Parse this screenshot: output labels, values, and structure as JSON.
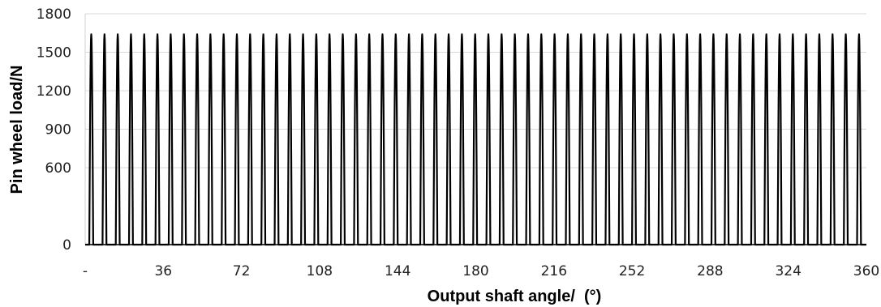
{
  "chart_data": {
    "type": "line",
    "title": "",
    "xlabel": "Output shaft angle/  (°)",
    "ylabel": "Pin wheel load/N",
    "xlim": [
      0,
      360
    ],
    "ylim": [
      0,
      1800
    ],
    "x_ticks": [
      {
        "value": 0,
        "label": "-"
      },
      {
        "value": 36,
        "label": "36"
      },
      {
        "value": 72,
        "label": "72"
      },
      {
        "value": 108,
        "label": "108"
      },
      {
        "value": 144,
        "label": "144"
      },
      {
        "value": 180,
        "label": "180"
      },
      {
        "value": 216,
        "label": "216"
      },
      {
        "value": 252,
        "label": "252"
      },
      {
        "value": 288,
        "label": "288"
      },
      {
        "value": 324,
        "label": "324"
      },
      {
        "value": 360,
        "label": "360"
      }
    ],
    "y_ticks": [
      {
        "value": 0,
        "label": "0"
      },
      {
        "value": 600,
        "label": "600"
      },
      {
        "value": 900,
        "label": "900"
      },
      {
        "value": 1200,
        "label": "1200"
      },
      {
        "value": 1500,
        "label": "1500"
      },
      {
        "value": 1800,
        "label": "1800"
      }
    ],
    "grid": "horizontal",
    "legend": "none",
    "series": [
      {
        "peak_angles": [
          3.6,
          7.2,
          10.8,
          14.4,
          18.0,
          21.6,
          25.2,
          28.8,
          32.4,
          36.0,
          39.6,
          43.2,
          46.8,
          50.4,
          54.0,
          57.6,
          61.2,
          64.8,
          68.4,
          72.0,
          75.6,
          79.2,
          82.8,
          86.4,
          90.0,
          93.6,
          97.2,
          100.8,
          104.4,
          108.0,
          111.6,
          115.2,
          118.8,
          122.4,
          126.0,
          129.6,
          133.2,
          136.8,
          140.4,
          144.0,
          147.6,
          151.2,
          154.8,
          158.4,
          162.0,
          165.6,
          169.2,
          172.8,
          176.4,
          180.0,
          183.6,
          187.2,
          190.8,
          194.4,
          198.0,
          201.6,
          205.2,
          208.8,
          212.4,
          216.0,
          219.6,
          223.2,
          226.8,
          230.4,
          234.0,
          237.6,
          241.2,
          244.8,
          248.4,
          252.0,
          255.6,
          259.2,
          262.8,
          266.4,
          270.0,
          273.6,
          277.2,
          280.8,
          284.4,
          288.0,
          291.6,
          295.2,
          298.8,
          302.4,
          306.0,
          309.6,
          313.2,
          316.8,
          320.4,
          324.0,
          327.6,
          331.2,
          334.8,
          338.4,
          342.0,
          345.6,
          349.2,
          352.8,
          356.4,
          360.0
        ],
        "peak_load": 1640,
        "pulse_halfwidth_deg": 0.9,
        "note_visible_peaks": [
          2.8,
          8.9,
          15.0,
          21.1,
          27.2,
          33.3,
          39.4,
          45.5,
          51.6,
          57.7,
          63.8,
          69.9,
          76.0,
          82.1,
          88.2,
          94.3,
          100.4,
          106.5,
          112.6,
          118.7,
          124.8,
          130.9,
          137.0,
          143.1,
          149.2,
          155.3,
          161.4,
          167.5,
          173.6,
          179.7,
          185.8,
          191.9,
          198.0,
          204.1,
          210.2,
          216.3,
          222.4,
          228.5,
          234.6,
          240.7,
          246.8,
          252.9,
          259.0,
          265.1,
          271.2,
          277.3,
          283.4,
          289.5,
          295.6,
          301.7,
          307.8,
          313.9,
          320.0,
          326.1,
          332.2,
          338.3,
          344.4,
          350.5,
          356.6
        ]
      }
    ]
  }
}
